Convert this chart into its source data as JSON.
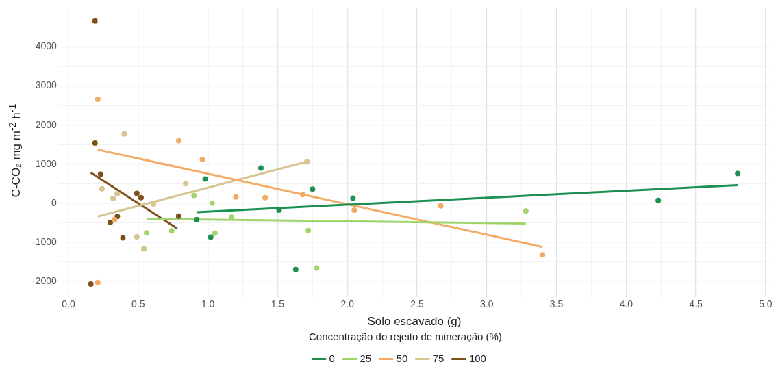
{
  "chart_data": {
    "type": "scatter",
    "xlabel": "Solo escavado (g)",
    "ylabel": "C-CO₂ mg m$^{-2}$ h$^{-1}$",
    "legend_title": "Concentração do rejeito de mineração (%)",
    "legend": "bottom",
    "grid": true,
    "marker": "circle",
    "xlim": [
      -0.07,
      5.03
    ],
    "ylim": [
      -2400,
      5000
    ],
    "xticks": [
      {
        "value": 0,
        "label": "0.0"
      },
      {
        "value": 0.25,
        "label": null
      },
      {
        "value": 0.5,
        "label": "0.5"
      },
      {
        "value": 0.75,
        "label": null
      },
      {
        "value": 1,
        "label": "1.0"
      },
      {
        "value": 1.25,
        "label": null
      },
      {
        "value": 1.5,
        "label": "1.5"
      },
      {
        "value": 1.75,
        "label": null
      },
      {
        "value": 2,
        "label": "2.0"
      },
      {
        "value": 2.25,
        "label": null
      },
      {
        "value": 2.5,
        "label": "2.5"
      },
      {
        "value": 2.75,
        "label": null
      },
      {
        "value": 3,
        "label": "3.0"
      },
      {
        "value": 3.25,
        "label": null
      },
      {
        "value": 3.5,
        "label": "3.5"
      },
      {
        "value": 3.75,
        "label": null
      },
      {
        "value": 4,
        "label": "4.0"
      },
      {
        "value": 4.25,
        "label": null
      },
      {
        "value": 4.5,
        "label": "4.5"
      },
      {
        "value": 4.75,
        "label": null
      },
      {
        "value": 5,
        "label": "5.0"
      }
    ],
    "yticks": [
      -2000,
      {
        "value": -1500,
        "label": null
      },
      -1000,
      {
        "value": -500,
        "label": null
      },
      0,
      {
        "value": 500,
        "label": null
      },
      1000,
      {
        "value": 1500,
        "label": null
      },
      2000,
      {
        "value": 2500,
        "label": null
      },
      3000,
      {
        "value": 3500,
        "label": null
      },
      4000,
      {
        "value": 4500,
        "label": null
      }
    ],
    "series": [
      {
        "name": "0",
        "type": "scatter",
        "color": "#1b9050",
        "x": [
          0.92,
          0.98,
          1.02,
          1.38,
          1.51,
          1.63,
          1.75,
          2.04,
          4.23,
          4.8
        ],
        "values": [
          -420,
          620,
          -870,
          900,
          -180,
          -1700,
          360,
          130,
          70,
          760
        ]
      },
      {
        "name": "25",
        "type": "scatter",
        "color": "#a3d36c",
        "x": [
          0.56,
          0.74,
          0.9,
          1.03,
          1.05,
          1.17,
          1.72,
          1.78,
          3.28
        ],
        "values": [
          -760,
          -710,
          200,
          0,
          -770,
          -360,
          -700,
          -1660,
          -200
        ]
      },
      {
        "name": "50",
        "type": "scatter",
        "color": "#f2aa64",
        "x": [
          0.21,
          0.21,
          0.33,
          0.79,
          0.96,
          1.2,
          1.41,
          1.68,
          2.05,
          2.67,
          3.4
        ],
        "values": [
          2660,
          -2030,
          -420,
          1600,
          1120,
          160,
          140,
          220,
          -180,
          -70,
          -1320
        ]
      },
      {
        "name": "75",
        "type": "scatter",
        "color": "#d8c48e",
        "x": [
          0.24,
          0.32,
          0.35,
          0.4,
          0.49,
          0.54,
          0.61,
          0.84,
          1.71
        ],
        "values": [
          370,
          120,
          240,
          1770,
          -860,
          -1170,
          -20,
          500,
          1060
        ]
      },
      {
        "name": "100",
        "type": "scatter",
        "color": "#7e5019",
        "x": [
          0.16,
          0.19,
          0.19,
          0.23,
          0.3,
          0.35,
          0.39,
          0.49,
          0.52,
          0.79
        ],
        "values": [
          -2070,
          4660,
          1540,
          740,
          -490,
          -340,
          -890,
          250,
          140,
          -330
        ]
      },
      {
        "type": "line",
        "marker": "none",
        "color": "#1b9050",
        "x": [
          0.92,
          4.8
        ],
        "values": [
          -230,
          460
        ]
      },
      {
        "type": "line",
        "marker": "none",
        "color": "#a3d36c",
        "x": [
          0.56,
          3.28
        ],
        "values": [
          -400,
          -520
        ]
      },
      {
        "type": "line",
        "marker": "none",
        "color": "#f2aa64",
        "x": [
          0.21,
          3.4
        ],
        "values": [
          1370,
          -1120
        ]
      },
      {
        "type": "line",
        "marker": "none",
        "color": "#d8c48e",
        "x": [
          0.21,
          1.71
        ],
        "values": [
          -340,
          1060
        ]
      },
      {
        "type": "line",
        "marker": "none",
        "color": "#7e5019",
        "x": [
          0.16,
          0.78
        ],
        "values": [
          780,
          -650
        ]
      }
    ]
  }
}
